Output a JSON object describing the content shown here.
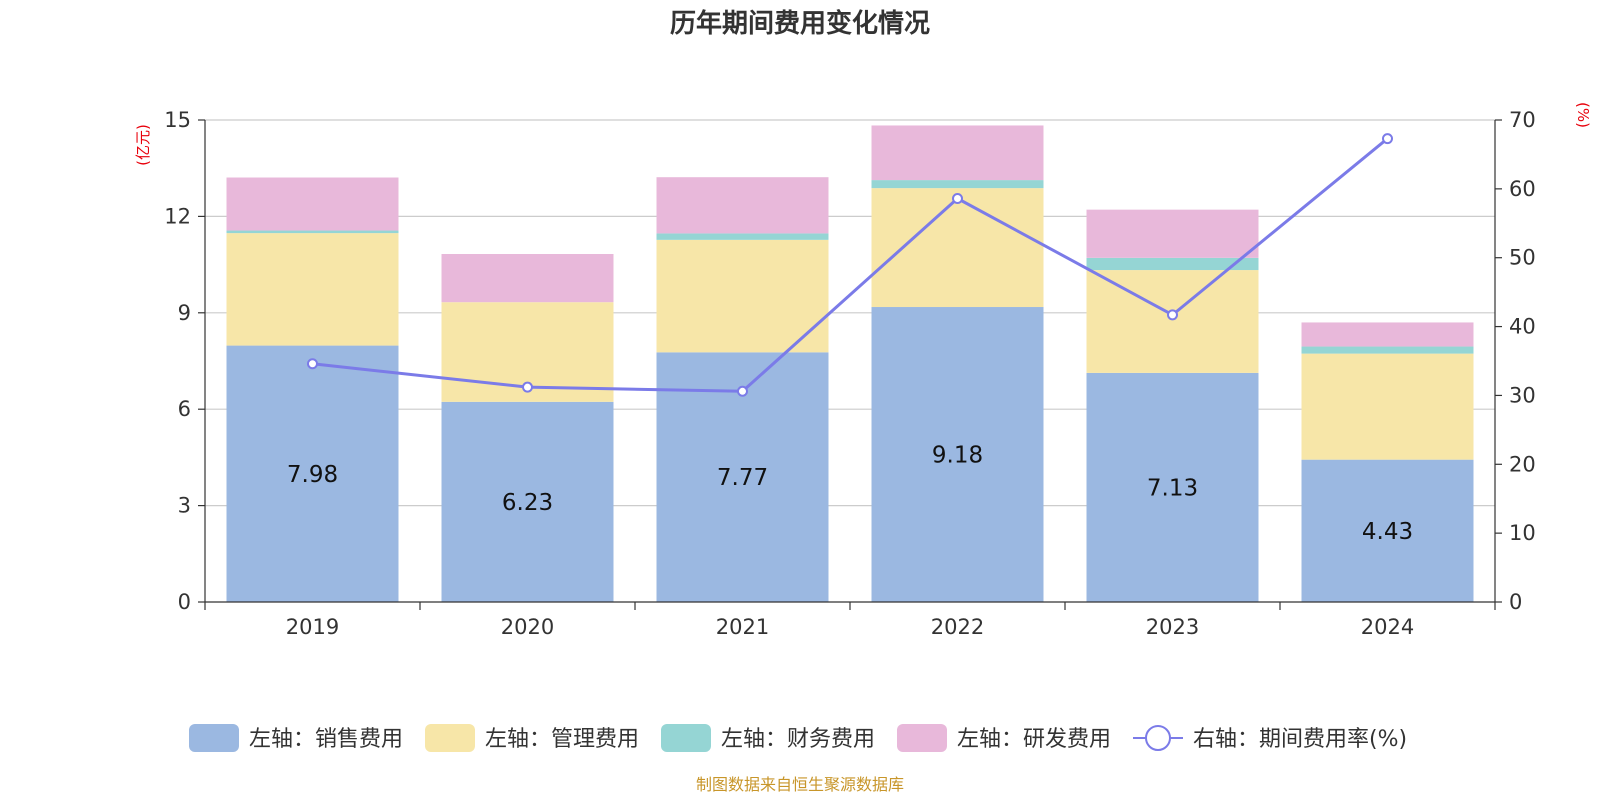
{
  "chart_data": {
    "type": "bar",
    "stacked": true,
    "title": "历年期间费用变化情况",
    "categories": [
      "2019",
      "2020",
      "2021",
      "2022",
      "2023",
      "2024"
    ],
    "left_axis": {
      "unit": "(亿元)",
      "ylim": [
        0,
        15
      ],
      "ticks": [
        "0",
        "3",
        "6",
        "9",
        "12",
        "15"
      ]
    },
    "right_axis": {
      "unit": "(%)",
      "ylim": [
        0,
        70
      ],
      "ticks": [
        "0",
        "10",
        "20",
        "30",
        "40",
        "50",
        "60",
        "70"
      ]
    },
    "series": [
      {
        "name": "左轴：销售费用",
        "axis": "left",
        "color": "#9bb8e1",
        "values": [
          7.98,
          6.23,
          7.77,
          9.18,
          7.13,
          4.43
        ],
        "labels": [
          "7.98",
          "6.23",
          "7.77",
          "9.18",
          "7.13",
          "4.43"
        ]
      },
      {
        "name": "左轴：管理费用",
        "axis": "left",
        "color": "#f7e6a8",
        "values": [
          3.5,
          3.1,
          3.5,
          3.7,
          3.2,
          3.3
        ]
      },
      {
        "name": "左轴：财务费用",
        "axis": "left",
        "color": "#95d5d4",
        "values": [
          0.08,
          0.0,
          0.2,
          0.25,
          0.38,
          0.22
        ]
      },
      {
        "name": "左轴：研发费用",
        "axis": "left",
        "color": "#e8b8da",
        "values": [
          1.65,
          1.5,
          1.75,
          1.7,
          1.5,
          0.75
        ]
      },
      {
        "name": "右轴：期间费用率(%)",
        "axis": "right",
        "type": "line",
        "color": "#7b7be8",
        "values": [
          34.6,
          31.2,
          30.6,
          58.6,
          41.7,
          67.3
        ]
      }
    ],
    "legend_position": "bottom",
    "grid": true
  },
  "source_text": "制图数据来自恒生聚源数据库"
}
